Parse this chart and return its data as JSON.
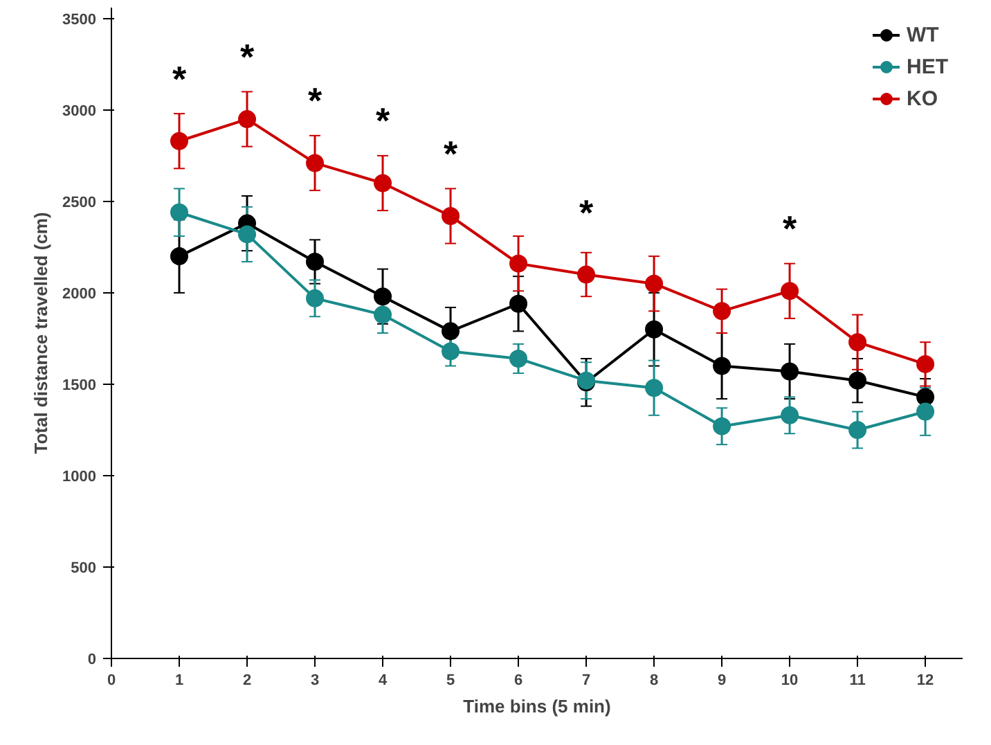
{
  "chart_data": {
    "type": "line",
    "xlabel": "Time bins (5 min)",
    "ylabel": "Total distance travelled (cm)",
    "x": [
      1,
      2,
      3,
      4,
      5,
      6,
      7,
      8,
      9,
      10,
      11,
      12
    ],
    "series": [
      {
        "name": "WT",
        "color": "#000000",
        "values": [
          2200,
          2380,
          2170,
          1980,
          1790,
          1940,
          1510,
          1800,
          1600,
          1570,
          1520,
          1430
        ],
        "errors": [
          200,
          150,
          120,
          150,
          130,
          150,
          130,
          200,
          180,
          150,
          120,
          100
        ]
      },
      {
        "name": "HET",
        "color": "#1a8a8a",
        "values": [
          2440,
          2320,
          1970,
          1880,
          1680,
          1640,
          1520,
          1480,
          1270,
          1330,
          1250,
          1350
        ],
        "errors": [
          130,
          150,
          100,
          100,
          80,
          80,
          100,
          150,
          100,
          100,
          100,
          130
        ]
      },
      {
        "name": "KO",
        "color": "#cc0000",
        "values": [
          2830,
          2950,
          2710,
          2600,
          2420,
          2160,
          2100,
          2050,
          1900,
          2010,
          1730,
          1610
        ],
        "errors": [
          150,
          150,
          150,
          150,
          150,
          150,
          120,
          150,
          120,
          150,
          150,
          120
        ]
      }
    ],
    "annotations": [
      {
        "text": "*",
        "x": 1,
        "y": 2830
      },
      {
        "text": "*",
        "x": 2,
        "y": 2950
      },
      {
        "text": "*",
        "x": 3,
        "y": 2710
      },
      {
        "text": "*",
        "x": 4,
        "y": 2600
      },
      {
        "text": "*",
        "x": 5,
        "y": 2420
      },
      {
        "text": "*",
        "x": 7,
        "y": 2100
      },
      {
        "text": "*",
        "x": 10,
        "y": 2010
      }
    ],
    "xlim": [
      0,
      12.55
    ],
    "xticks": [
      0,
      1,
      2,
      3,
      4,
      5,
      6,
      7,
      8,
      9,
      10,
      11,
      12
    ],
    "ylim": [
      0,
      3560
    ],
    "yticks": [
      0,
      500,
      1000,
      1500,
      2000,
      2500,
      3000,
      3500
    ],
    "grid": false,
    "legend": "top right",
    "marker": "circle",
    "line_style": "solid"
  }
}
